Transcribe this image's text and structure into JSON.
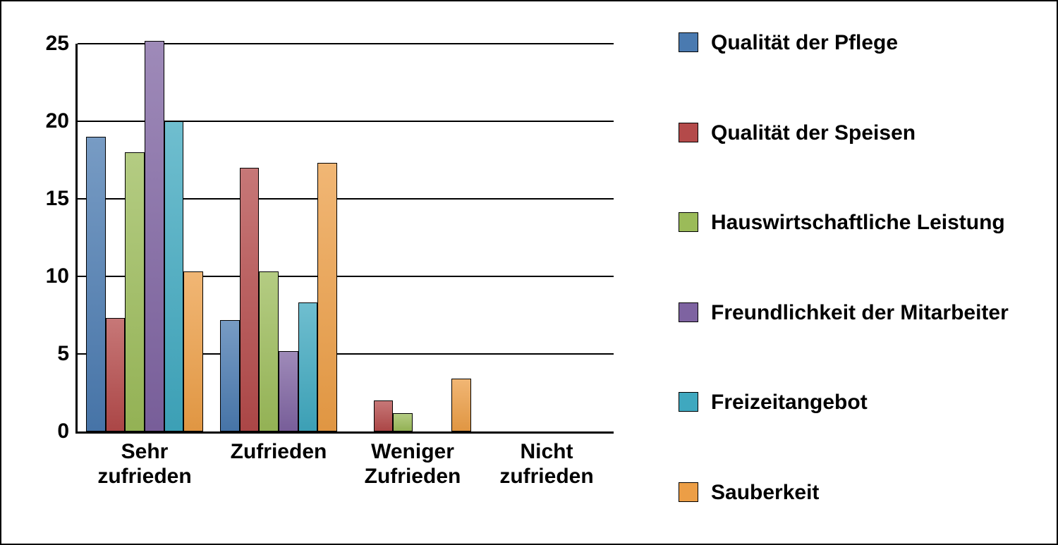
{
  "chart": {
    "type": "bar",
    "background_color": "#ffffff",
    "grid_color": "#000000",
    "axis_color": "#000000",
    "ylim": [
      0,
      25
    ],
    "yticks": [
      0,
      5,
      10,
      15,
      20,
      25
    ],
    "ytick_fontsize": 30,
    "xlabel_fontsize": 30,
    "legend_fontsize": 30,
    "bar_width_ratio": 0.145,
    "group_gap_ratio": 0.065,
    "categories": [
      "Sehr zufrieden",
      "Zufrieden",
      "Weniger Zufrieden",
      "Nicht zufrieden"
    ],
    "series": [
      {
        "label": "Qualität der Pflege",
        "color": "#4a7ab0",
        "values": [
          19,
          7.2,
          0,
          0
        ]
      },
      {
        "label": "Qualität der Speisen",
        "color": "#b44a4a",
        "values": [
          7.3,
          17,
          2,
          0
        ]
      },
      {
        "label": "Hauswirtschaftliche Leistung",
        "color": "#9bbb59",
        "values": [
          18,
          10.3,
          1.2,
          0
        ]
      },
      {
        "label": "Freundlichkeit der Mitarbeiter",
        "color": "#7e63a1",
        "values": [
          25.2,
          5.2,
          0,
          0
        ]
      },
      {
        "label": "Freizeitangebot",
        "color": "#3fa8bf",
        "values": [
          20,
          8.3,
          0,
          0
        ]
      },
      {
        "label": "Sauberkeit",
        "color": "#ec9e46",
        "values": [
          10.3,
          17.3,
          3.4,
          0
        ]
      }
    ],
    "category_labels_split": [
      [
        "Sehr",
        "zufrieden"
      ],
      [
        "Zufrieden"
      ],
      [
        "Weniger",
        "Zufrieden"
      ],
      [
        "Nicht",
        "zufrieden"
      ]
    ],
    "legend_gap": 90
  }
}
